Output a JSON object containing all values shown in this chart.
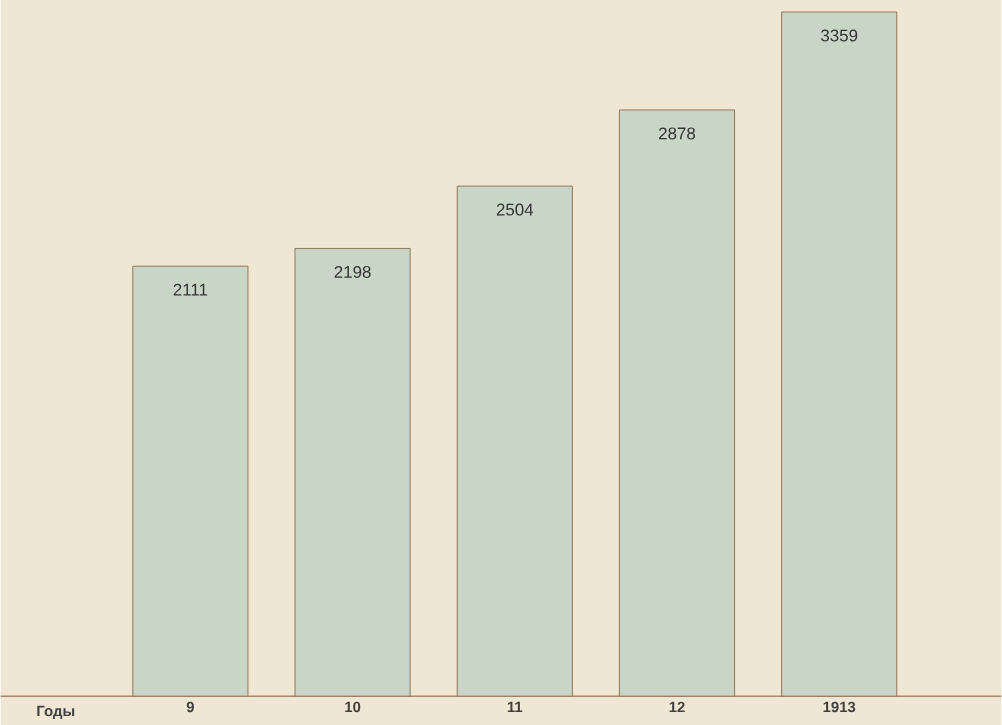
{
  "chart_data": {
    "type": "bar",
    "xlabel": "Годы",
    "categories": [
      "9",
      "10",
      "11",
      "12",
      "1913"
    ],
    "values": [
      2111,
      2198,
      2504,
      2878,
      3359
    ],
    "color": "#c9d5c6",
    "data_labels": true
  }
}
